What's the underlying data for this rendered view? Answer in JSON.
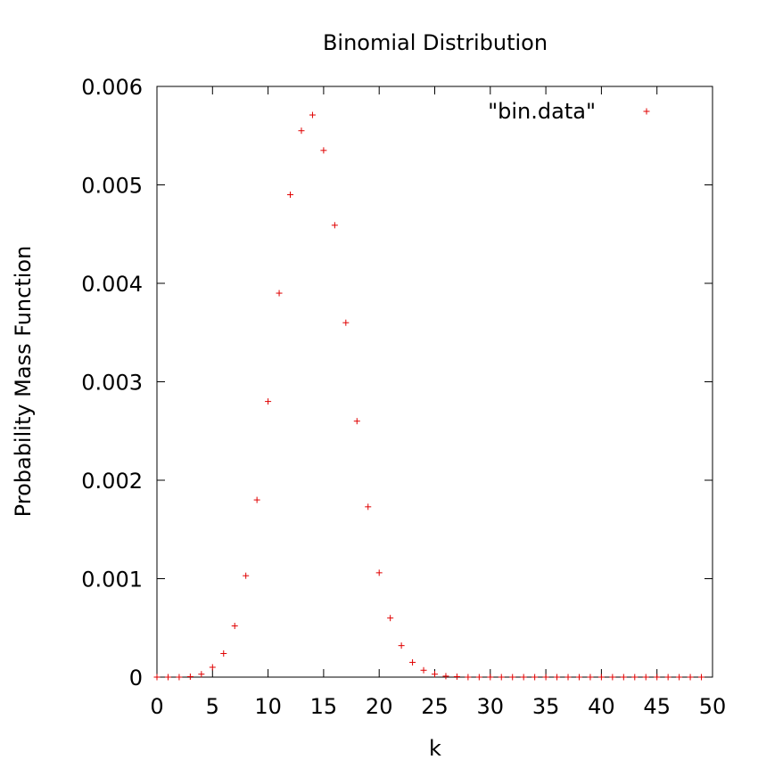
{
  "chart_data": {
    "type": "scatter",
    "title": "Binomial Distribution",
    "xlabel": "k",
    "ylabel": "Probability Mass Function",
    "xlim": [
      0,
      50
    ],
    "ylim": [
      0,
      0.006
    ],
    "xticks": [
      "0",
      "5",
      "10",
      "15",
      "20",
      "25",
      "30",
      "35",
      "40",
      "45",
      "50"
    ],
    "yticks": [
      "0",
      "0.001",
      "0.002",
      "0.003",
      "0.004",
      "0.005",
      "0.006"
    ],
    "grid": false,
    "legend_position": "top-right",
    "marker": "plus",
    "series": [
      {
        "name": "\"bin.data\"",
        "color": "#e00000",
        "x": [
          0,
          1,
          2,
          3,
          4,
          5,
          6,
          7,
          8,
          9,
          10,
          11,
          12,
          13,
          14,
          15,
          16,
          17,
          18,
          19,
          20,
          21,
          22,
          23,
          24,
          25,
          26,
          27,
          28,
          29,
          30,
          31,
          32,
          33,
          34,
          35,
          36,
          37,
          38,
          39,
          40,
          41,
          42,
          43,
          44,
          45,
          46,
          47,
          48,
          49
        ],
        "y": [
          0,
          0,
          0,
          5e-06,
          3e-05,
          0.0001,
          0.00024,
          0.00052,
          0.00103,
          0.0018,
          0.0028,
          0.0039,
          0.0049,
          0.00555,
          0.00571,
          0.00535,
          0.00459,
          0.0036,
          0.0026,
          0.00173,
          0.00106,
          0.0006,
          0.00032,
          0.00015,
          7e-05,
          3e-05,
          1e-05,
          5e-06,
          0,
          0,
          0,
          0,
          0,
          0,
          0,
          0,
          0,
          0,
          0,
          0,
          0,
          0,
          0,
          0,
          0,
          0,
          0,
          0,
          0,
          0
        ]
      }
    ]
  }
}
